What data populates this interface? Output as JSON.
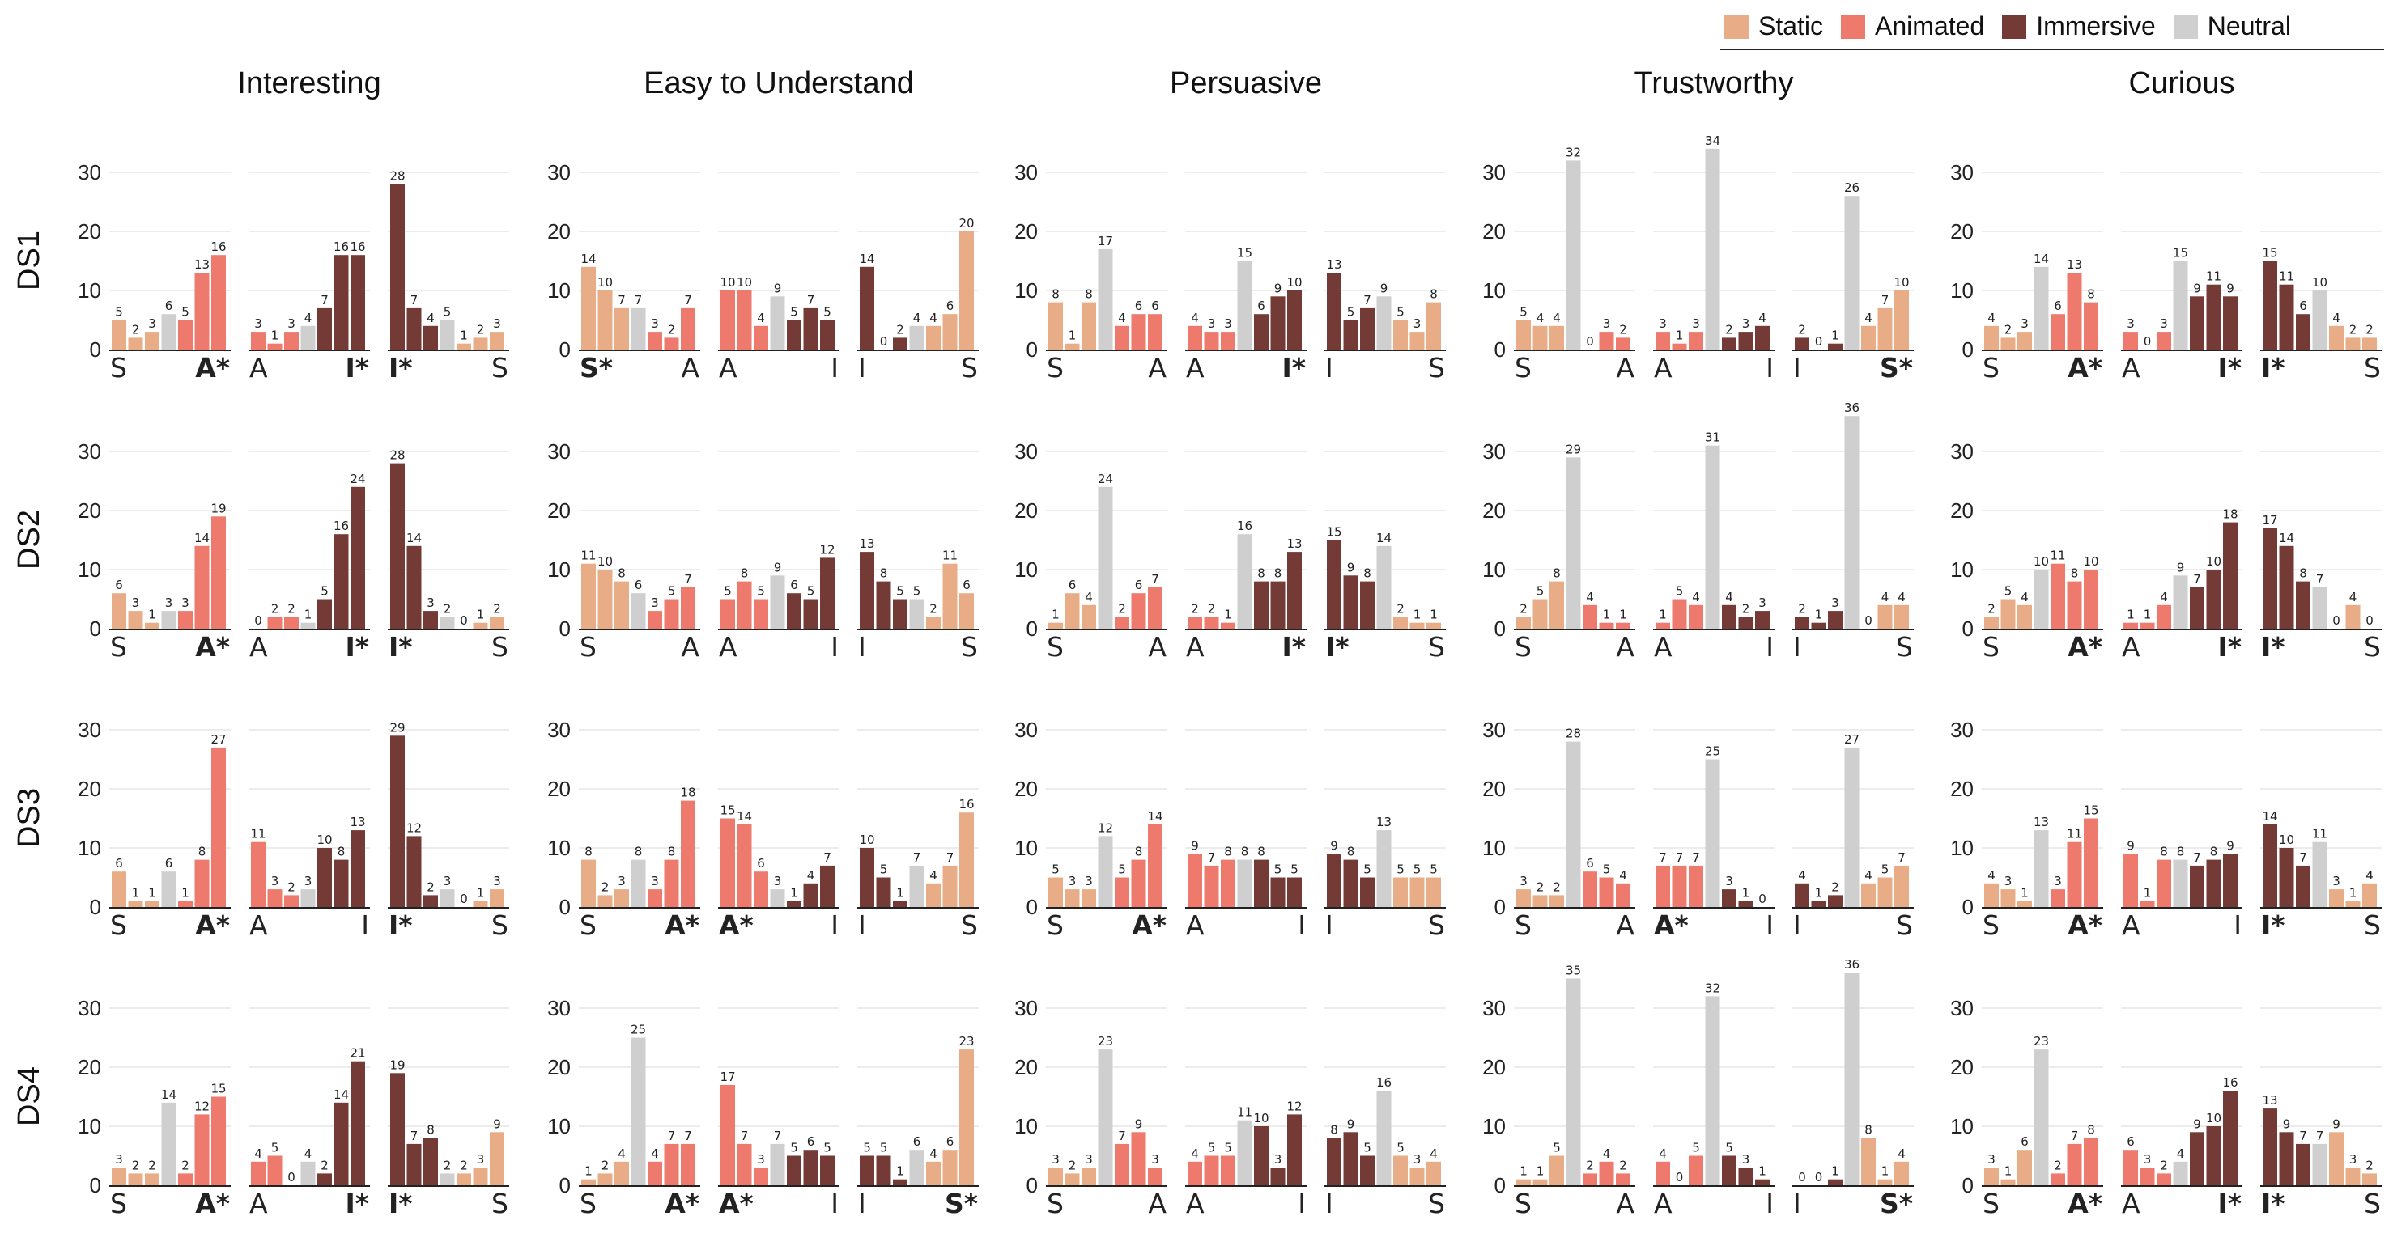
{
  "legend": [
    {
      "label": "Static",
      "color": "#E8AD87"
    },
    {
      "label": "Animated",
      "color": "#EE7A6D"
    },
    {
      "label": "Immersive",
      "color": "#743A35"
    },
    {
      "label": "Neutral",
      "color": "#CFCFCF"
    }
  ],
  "chart_data": {
    "type": "bar",
    "columns": [
      "Interesting",
      "Easy to Understand",
      "Persuasive",
      "Trustworthy",
      "Curious"
    ],
    "rows": [
      "DS1",
      "DS2",
      "DS3",
      "DS4"
    ],
    "ylim": [
      0,
      35
    ],
    "yticks": [
      0,
      10,
      20,
      30
    ],
    "grid": true,
    "legend_position": "top-right",
    "panels": [
      [
        {
          "values": [
            [
              5,
              2,
              3,
              6,
              5,
              13,
              16
            ],
            [
              3,
              1,
              3,
              4,
              7,
              16,
              16
            ],
            [
              28,
              7,
              4,
              5,
              1,
              2,
              3
            ]
          ],
          "labels": [
            [
              "S",
              "A*"
            ],
            [
              "A",
              "I*"
            ],
            [
              "I*",
              "S"
            ]
          ]
        },
        {
          "values": [
            [
              14,
              10,
              7,
              7,
              3,
              2,
              7
            ],
            [
              10,
              10,
              4,
              9,
              5,
              7,
              5
            ],
            [
              14,
              0,
              2,
              4,
              4,
              6,
              20
            ]
          ],
          "labels": [
            [
              "S*",
              "A"
            ],
            [
              "A",
              "I"
            ],
            [
              "I",
              "S"
            ]
          ]
        },
        {
          "values": [
            [
              8,
              1,
              8,
              17,
              4,
              6,
              6
            ],
            [
              4,
              3,
              3,
              15,
              6,
              9,
              10
            ],
            [
              13,
              5,
              7,
              9,
              5,
              3,
              8
            ]
          ],
          "labels": [
            [
              "S",
              "A"
            ],
            [
              "A",
              "I*"
            ],
            [
              "I",
              "S"
            ]
          ]
        },
        {
          "values": [
            [
              5,
              4,
              4,
              32,
              0,
              3,
              2
            ],
            [
              3,
              1,
              3,
              34,
              2,
              3,
              4
            ],
            [
              2,
              0,
              1,
              26,
              4,
              7,
              10
            ]
          ],
          "labels": [
            [
              "S",
              "A"
            ],
            [
              "A",
              "I"
            ],
            [
              "I",
              "S*"
            ]
          ]
        },
        {
          "values": [
            [
              4,
              2,
              3,
              14,
              6,
              13,
              8
            ],
            [
              3,
              0,
              3,
              15,
              9,
              11,
              9
            ],
            [
              15,
              11,
              6,
              10,
              4,
              2,
              2
            ]
          ],
          "labels": [
            [
              "S",
              "A*"
            ],
            [
              "A",
              "I*"
            ],
            [
              "I*",
              "S"
            ]
          ]
        }
      ],
      [
        {
          "values": [
            [
              6,
              3,
              1,
              3,
              3,
              14,
              19
            ],
            [
              0,
              2,
              2,
              1,
              5,
              16,
              24
            ],
            [
              28,
              14,
              3,
              2,
              0,
              1,
              2
            ]
          ],
          "labels": [
            [
              "S",
              "A*"
            ],
            [
              "A",
              "I*"
            ],
            [
              "I*",
              "S"
            ]
          ]
        },
        {
          "values": [
            [
              11,
              10,
              8,
              6,
              3,
              5,
              7
            ],
            [
              5,
              8,
              5,
              9,
              6,
              5,
              12
            ],
            [
              13,
              8,
              5,
              5,
              2,
              11,
              6
            ]
          ],
          "labels": [
            [
              "S",
              "A"
            ],
            [
              "A",
              "I"
            ],
            [
              "I",
              "S"
            ]
          ]
        },
        {
          "values": [
            [
              1,
              6,
              4,
              24,
              2,
              6,
              7
            ],
            [
              2,
              2,
              1,
              16,
              8,
              8,
              13
            ],
            [
              15,
              9,
              8,
              14,
              2,
              1,
              1
            ]
          ],
          "labels": [
            [
              "S",
              "A"
            ],
            [
              "A",
              "I*"
            ],
            [
              "I*",
              "S"
            ]
          ]
        },
        {
          "values": [
            [
              2,
              5,
              8,
              29,
              4,
              1,
              1
            ],
            [
              1,
              5,
              4,
              31,
              4,
              2,
              3
            ],
            [
              2,
              1,
              3,
              36,
              0,
              4,
              4
            ]
          ],
          "labels": [
            [
              "S",
              "A"
            ],
            [
              "A",
              "I"
            ],
            [
              "I",
              "S"
            ]
          ]
        },
        {
          "values": [
            [
              2,
              5,
              4,
              10,
              11,
              8,
              10
            ],
            [
              1,
              1,
              4,
              9,
              7,
              10,
              18
            ],
            [
              17,
              14,
              8,
              7,
              0,
              4,
              0
            ]
          ],
          "labels": [
            [
              "S",
              "A*"
            ],
            [
              "A",
              "I*"
            ],
            [
              "I*",
              "S"
            ]
          ]
        }
      ],
      [
        {
          "values": [
            [
              6,
              1,
              1,
              6,
              1,
              8,
              27
            ],
            [
              11,
              3,
              2,
              3,
              10,
              8,
              13
            ],
            [
              29,
              12,
              2,
              3,
              0,
              1,
              3
            ]
          ],
          "labels": [
            [
              "S",
              "A*"
            ],
            [
              "A",
              "I"
            ],
            [
              "I*",
              "S"
            ]
          ]
        },
        {
          "values": [
            [
              8,
              2,
              3,
              8,
              3,
              8,
              18
            ],
            [
              15,
              14,
              6,
              3,
              1,
              4,
              7
            ],
            [
              10,
              5,
              1,
              7,
              4,
              7,
              16
            ]
          ],
          "labels": [
            [
              "S",
              "A*"
            ],
            [
              "A*",
              "I"
            ],
            [
              "I",
              "S"
            ]
          ]
        },
        {
          "values": [
            [
              5,
              3,
              3,
              12,
              5,
              8,
              14
            ],
            [
              9,
              7,
              8,
              8,
              8,
              5,
              5
            ],
            [
              9,
              8,
              5,
              13,
              5,
              5,
              5
            ]
          ],
          "labels": [
            [
              "S",
              "A*"
            ],
            [
              "A",
              "I"
            ],
            [
              "I",
              "S"
            ]
          ]
        },
        {
          "values": [
            [
              3,
              2,
              2,
              28,
              6,
              5,
              4
            ],
            [
              7,
              7,
              7,
              25,
              3,
              1,
              0
            ],
            [
              4,
              1,
              2,
              27,
              4,
              5,
              7
            ]
          ],
          "labels": [
            [
              "S",
              "A"
            ],
            [
              "A*",
              "I"
            ],
            [
              "I",
              "S"
            ]
          ]
        },
        {
          "values": [
            [
              4,
              3,
              1,
              13,
              3,
              11,
              15
            ],
            [
              9,
              1,
              8,
              8,
              7,
              8,
              9
            ],
            [
              14,
              10,
              7,
              11,
              3,
              1,
              4
            ]
          ],
          "labels": [
            [
              "S",
              "A*"
            ],
            [
              "A",
              "I"
            ],
            [
              "I*",
              "S"
            ]
          ]
        }
      ],
      [
        {
          "values": [
            [
              3,
              2,
              2,
              14,
              2,
              12,
              15
            ],
            [
              4,
              5,
              0,
              4,
              2,
              14,
              21
            ],
            [
              19,
              7,
              8,
              2,
              2,
              3,
              9
            ]
          ],
          "labels": [
            [
              "S",
              "A*"
            ],
            [
              "A",
              "I*"
            ],
            [
              "I*",
              "S"
            ]
          ]
        },
        {
          "values": [
            [
              1,
              2,
              4,
              25,
              4,
              7,
              7
            ],
            [
              17,
              7,
              3,
              7,
              5,
              6,
              5
            ],
            [
              5,
              5,
              1,
              6,
              4,
              6,
              23
            ]
          ],
          "labels": [
            [
              "S",
              "A*"
            ],
            [
              "A*",
              "I"
            ],
            [
              "I",
              "S*"
            ]
          ]
        },
        {
          "values": [
            [
              3,
              2,
              3,
              23,
              7,
              9,
              3
            ],
            [
              4,
              5,
              5,
              11,
              10,
              3,
              12
            ],
            [
              8,
              9,
              5,
              16,
              5,
              3,
              4
            ]
          ],
          "labels": [
            [
              "S",
              "A"
            ],
            [
              "A",
              "I"
            ],
            [
              "I",
              "S"
            ]
          ]
        },
        {
          "values": [
            [
              1,
              1,
              5,
              35,
              2,
              4,
              2
            ],
            [
              4,
              0,
              5,
              32,
              5,
              3,
              1
            ],
            [
              0,
              0,
              1,
              36,
              8,
              1,
              4
            ]
          ],
          "labels": [
            [
              "S",
              "A"
            ],
            [
              "A",
              "I"
            ],
            [
              "I",
              "S*"
            ]
          ]
        },
        {
          "values": [
            [
              3,
              1,
              6,
              23,
              2,
              7,
              8
            ],
            [
              6,
              3,
              2,
              4,
              9,
              10,
              16
            ],
            [
              13,
              9,
              7,
              7,
              9,
              3,
              2
            ]
          ],
          "labels": [
            [
              "S",
              "A*"
            ],
            [
              "A",
              "I*"
            ],
            [
              "I*",
              "S"
            ]
          ]
        }
      ]
    ]
  }
}
